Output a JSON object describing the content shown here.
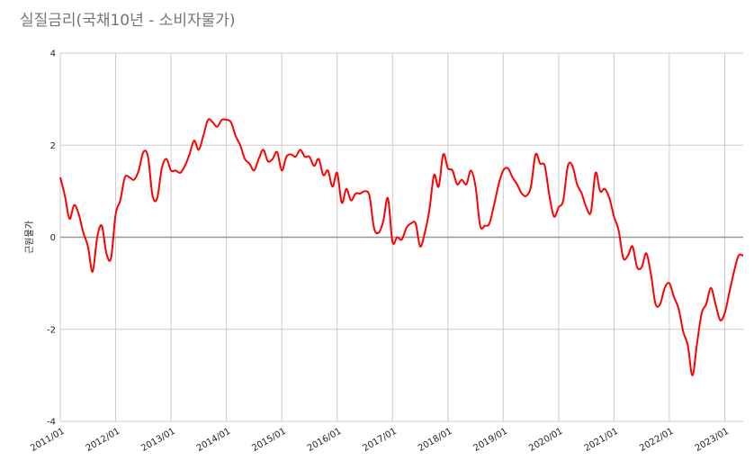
{
  "chart_data": {
    "type": "line",
    "title": "실질금리(국채10년 - 소비자물가)",
    "ylabel": "근원물가",
    "xlabel": "",
    "ylim": [
      -4,
      4
    ],
    "yticks": [
      4,
      2,
      0,
      -2,
      -4
    ],
    "ytick_labels": [
      "4",
      "2",
      "0",
      "-2",
      "-4"
    ],
    "xlim": [
      "2011-01",
      "2023-05"
    ],
    "xtick_labels": [
      "2011/01",
      "2012/01",
      "2013/01",
      "2014/01",
      "2015/01",
      "2016/01",
      "2017/01",
      "2018/01",
      "2019/01",
      "2020/01",
      "2021/01",
      "2022/01",
      "2023/01"
    ],
    "grid": true,
    "legend": "none",
    "line_color": "#ff0000",
    "zero_line_color": "#999999",
    "series": [
      {
        "x": [
          "2011-01",
          "2011-02",
          "2011-03",
          "2011-04",
          "2011-05",
          "2011-06",
          "2011-07",
          "2011-08",
          "2011-09",
          "2011-10",
          "2011-11",
          "2011-12",
          "2012-01",
          "2012-02",
          "2012-03",
          "2012-04",
          "2012-05",
          "2012-06",
          "2012-07",
          "2012-08",
          "2012-09",
          "2012-10",
          "2012-11",
          "2012-12",
          "2013-01",
          "2013-02",
          "2013-03",
          "2013-04",
          "2013-05",
          "2013-06",
          "2013-07",
          "2013-08",
          "2013-09",
          "2013-10",
          "2013-11",
          "2013-12",
          "2014-01",
          "2014-02",
          "2014-03",
          "2014-04",
          "2014-05",
          "2014-06",
          "2014-07",
          "2014-08",
          "2014-09",
          "2014-10",
          "2014-11",
          "2014-12",
          "2015-01",
          "2015-02",
          "2015-03",
          "2015-04",
          "2015-05",
          "2015-06",
          "2015-07",
          "2015-08",
          "2015-09",
          "2015-10",
          "2015-11",
          "2015-12",
          "2016-01",
          "2016-02",
          "2016-03",
          "2016-04",
          "2016-05",
          "2016-06",
          "2016-07",
          "2016-08",
          "2016-09",
          "2016-10",
          "2016-11",
          "2016-12",
          "2017-01",
          "2017-02",
          "2017-03",
          "2017-04",
          "2017-05",
          "2017-06",
          "2017-07",
          "2017-08",
          "2017-09",
          "2017-10",
          "2017-11",
          "2017-12",
          "2018-01",
          "2018-02",
          "2018-03",
          "2018-04",
          "2018-05",
          "2018-06",
          "2018-07",
          "2018-08",
          "2018-09",
          "2018-10",
          "2018-11",
          "2018-12",
          "2019-01",
          "2019-02",
          "2019-03",
          "2019-04",
          "2019-05",
          "2019-06",
          "2019-07",
          "2019-08",
          "2019-09",
          "2019-10",
          "2019-11",
          "2019-12",
          "2020-01",
          "2020-02",
          "2020-03",
          "2020-04",
          "2020-05",
          "2020-06",
          "2020-07",
          "2020-08",
          "2020-09",
          "2020-10",
          "2020-11",
          "2020-12",
          "2021-01",
          "2021-02",
          "2021-03",
          "2021-04",
          "2021-05",
          "2021-06",
          "2021-07",
          "2021-08",
          "2021-09",
          "2021-10",
          "2021-11",
          "2021-12",
          "2022-01",
          "2022-02",
          "2022-03",
          "2022-04",
          "2022-05",
          "2022-06",
          "2022-07",
          "2022-08",
          "2022-09",
          "2022-10",
          "2022-11",
          "2022-12",
          "2023-01",
          "2023-02",
          "2023-03",
          "2023-04",
          "2023-05"
        ],
        "y": [
          1.3,
          0.9,
          0.4,
          0.7,
          0.5,
          0.1,
          -0.2,
          -0.75,
          0.0,
          0.25,
          -0.35,
          -0.45,
          0.5,
          0.8,
          1.3,
          1.3,
          1.25,
          1.45,
          1.85,
          1.75,
          0.9,
          0.85,
          1.5,
          1.7,
          1.45,
          1.45,
          1.4,
          1.55,
          1.8,
          2.1,
          1.9,
          2.2,
          2.55,
          2.5,
          2.4,
          2.55,
          2.55,
          2.5,
          2.2,
          2.0,
          1.7,
          1.6,
          1.45,
          1.7,
          1.9,
          1.65,
          1.7,
          1.85,
          1.45,
          1.75,
          1.8,
          1.75,
          1.9,
          1.75,
          1.75,
          1.55,
          1.7,
          1.35,
          1.45,
          1.1,
          1.4,
          0.75,
          1.05,
          0.8,
          0.95,
          0.95,
          1.0,
          0.9,
          0.2,
          0.1,
          0.35,
          0.85,
          -0.1,
          0.0,
          -0.05,
          0.2,
          0.3,
          0.3,
          -0.2,
          0.1,
          0.6,
          1.35,
          1.1,
          1.8,
          1.5,
          1.45,
          1.15,
          1.25,
          1.15,
          1.45,
          1.1,
          0.25,
          0.25,
          0.3,
          0.7,
          1.15,
          1.45,
          1.5,
          1.3,
          1.15,
          0.95,
          0.9,
          1.1,
          1.8,
          1.6,
          1.55,
          0.9,
          0.45,
          0.65,
          0.8,
          1.55,
          1.55,
          1.15,
          0.95,
          0.65,
          0.55,
          1.4,
          1.0,
          1.05,
          0.85,
          0.45,
          0.15,
          -0.45,
          -0.4,
          -0.2,
          -0.65,
          -0.65,
          -0.35,
          -0.8,
          -1.45,
          -1.45,
          -1.1,
          -1.0,
          -1.3,
          -1.55,
          -2.05,
          -2.35,
          -3.0,
          -2.3,
          -1.65,
          -1.45,
          -1.1,
          -1.45,
          -1.8,
          -1.65,
          -1.2,
          -0.75,
          -0.4,
          -0.4
        ]
      }
    ]
  }
}
